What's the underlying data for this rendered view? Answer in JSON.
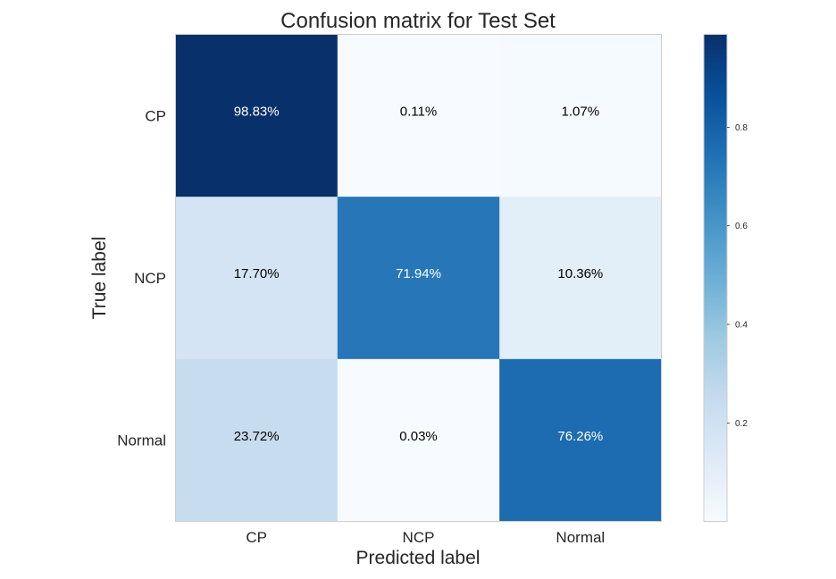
{
  "chart_data": {
    "type": "heatmap",
    "title": "Confusion matrix for Test Set",
    "xlabel": "Predicted label",
    "ylabel": "True label",
    "x_categories": [
      "CP",
      "NCP",
      "Normal"
    ],
    "y_categories": [
      "CP",
      "NCP",
      "Normal"
    ],
    "values": [
      [
        0.9883,
        0.0011,
        0.0107
      ],
      [
        0.177,
        0.7194,
        0.1036
      ],
      [
        0.2372,
        0.0003,
        0.7626
      ]
    ],
    "cell_labels": [
      [
        "98.83%",
        "0.11%",
        "1.07%"
      ],
      [
        "17.70%",
        "71.94%",
        "10.36%"
      ],
      [
        "23.72%",
        "0.03%",
        "76.26%"
      ]
    ],
    "colormap": "Blues",
    "colorbar": {
      "range": [
        0.0003,
        0.9883
      ],
      "ticks": [
        0.2,
        0.4,
        0.6,
        0.8
      ],
      "tick_labels": [
        "0.2",
        "0.4",
        "0.6",
        "0.8"
      ]
    },
    "grid": false
  },
  "colors": {
    "low": "#f7fbff",
    "high": "#08306b",
    "text_dark": "#000000",
    "text_light": "#ffffff",
    "frame": "#cccccc"
  }
}
